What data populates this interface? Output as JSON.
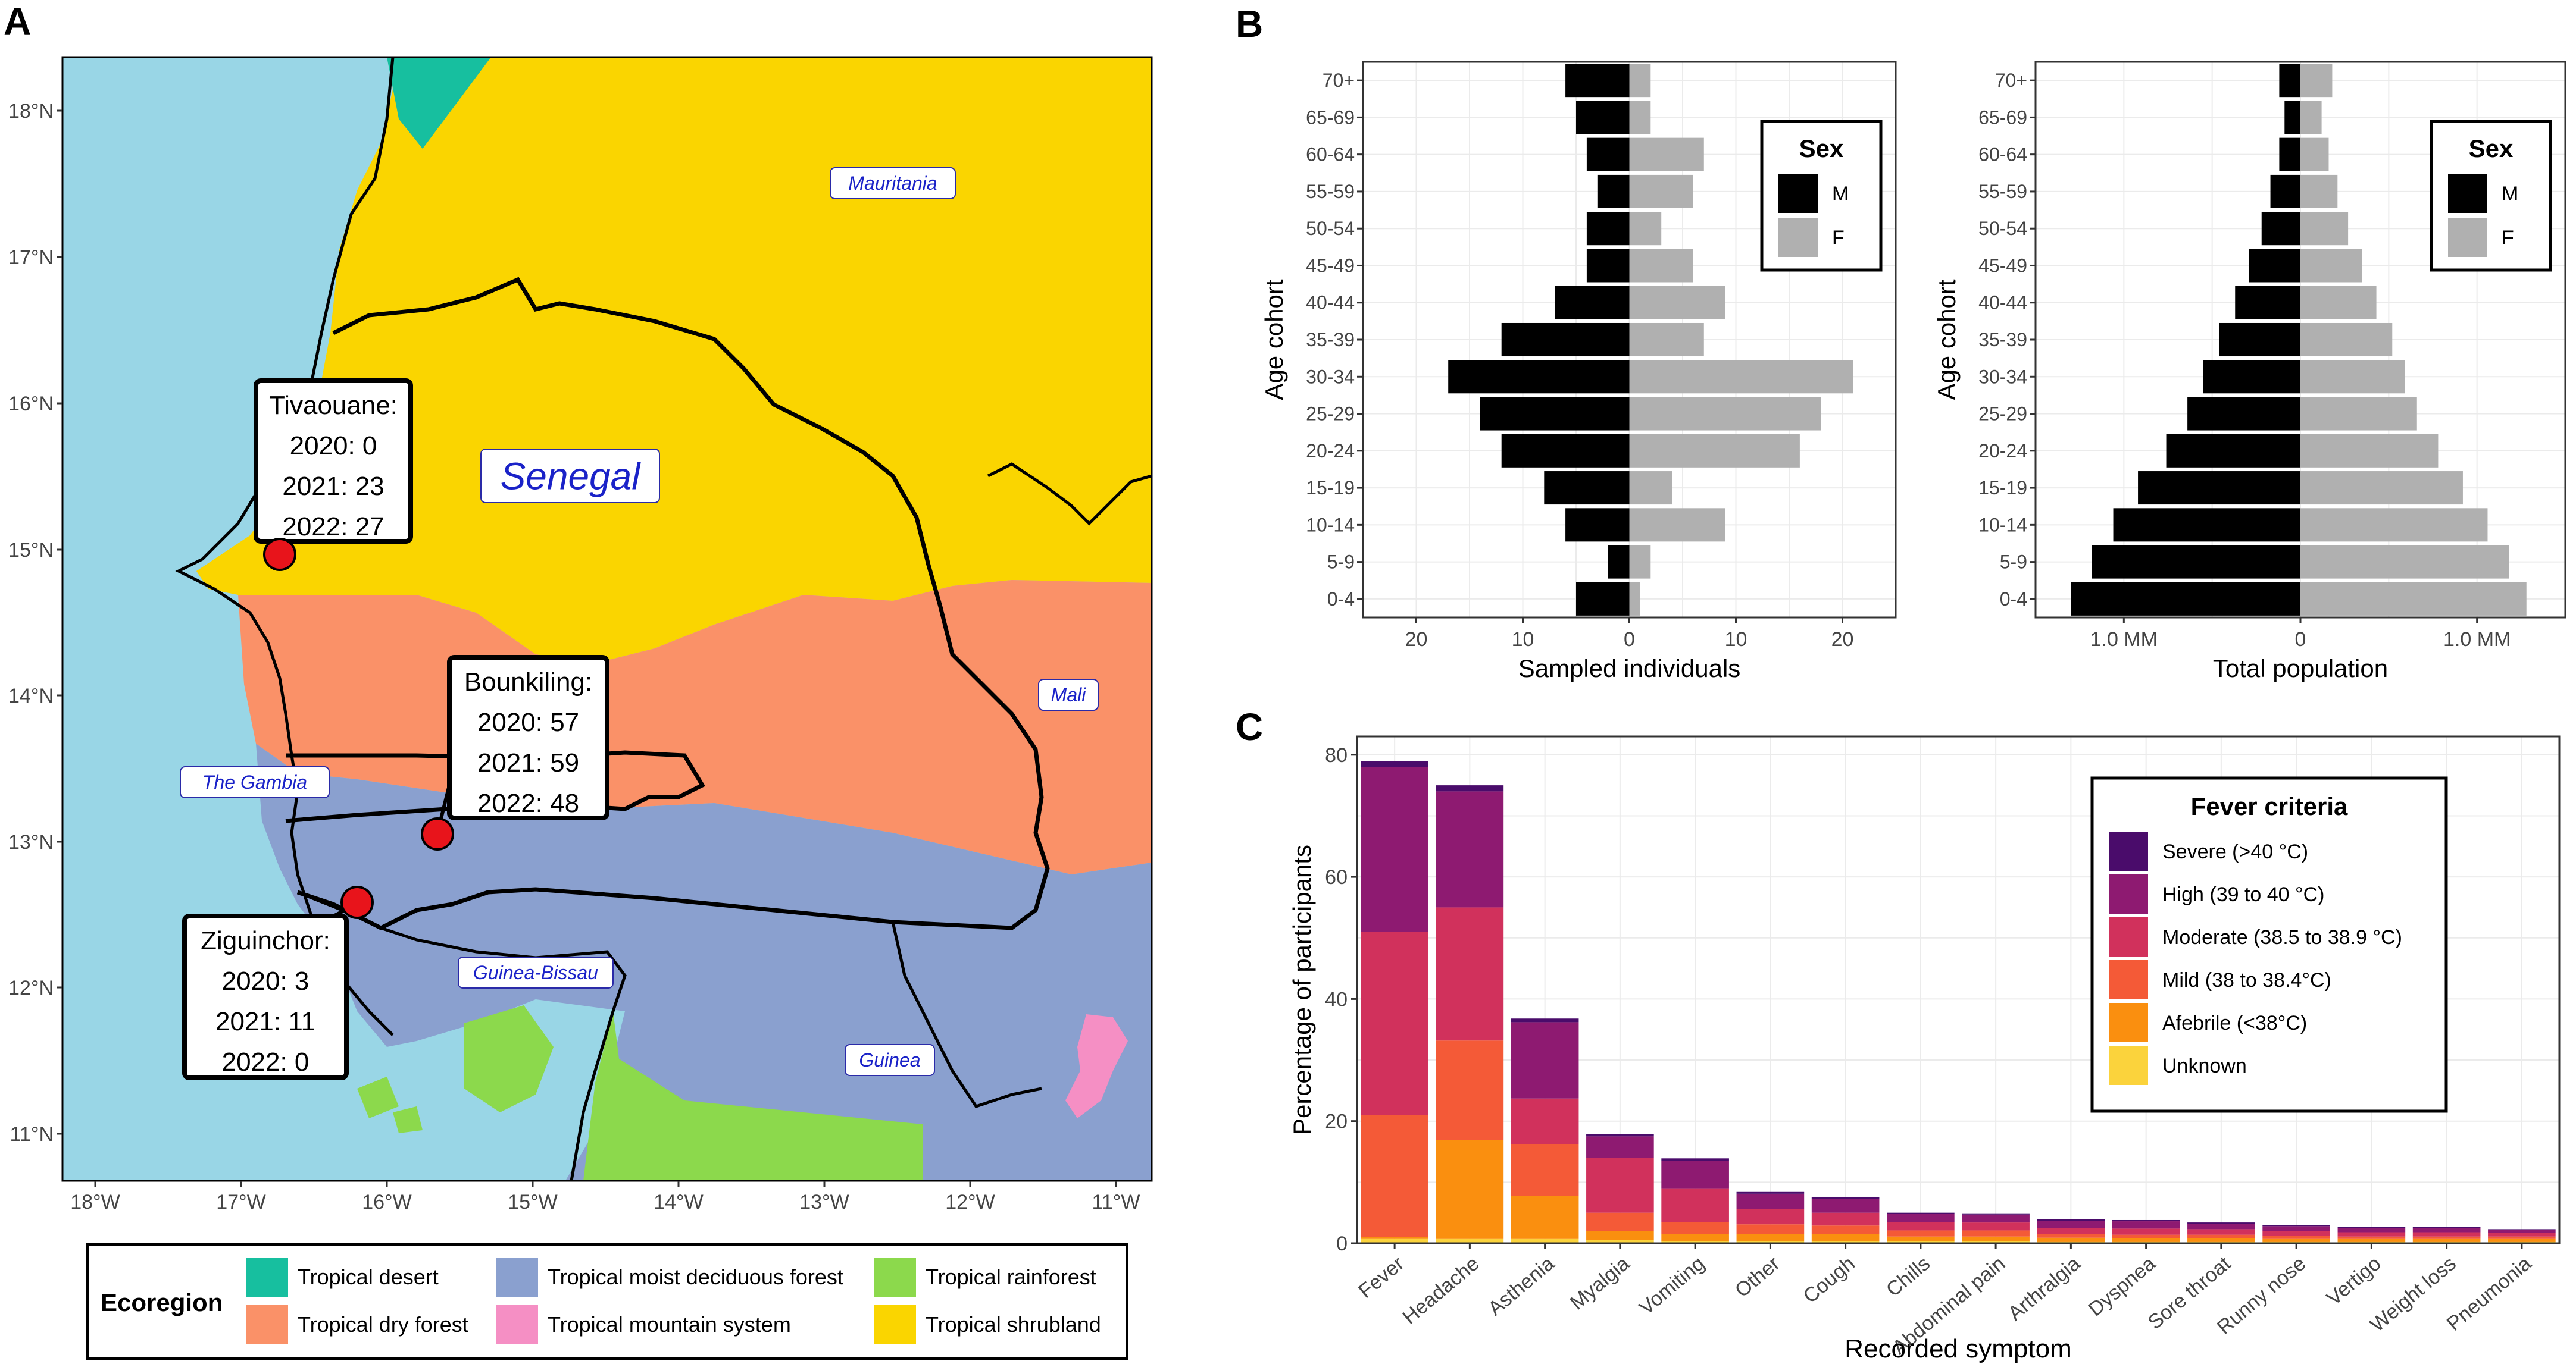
{
  "panels": {
    "a": "A",
    "b": "B",
    "c": "C"
  },
  "colors": {
    "sea": "#99d6e6",
    "tropical_desert": "#17bf9f",
    "tropical_dry_forest": "#fa9168",
    "tropical_moist_deciduous_forest": "#8aa0cf",
    "tropical_mountain_system": "#f58fc4",
    "tropical_rainforest": "#8cd94c",
    "tropical_shrubland": "#fad500",
    "male_bar": "#000000",
    "female_bar": "#b0b0b0",
    "severe": "#4a0c6b",
    "high": "#8e1a71",
    "moderate": "#d1315c",
    "mild": "#f45a37",
    "afebrile": "#fa8f0f",
    "unknown": "#fbd33c"
  },
  "map": {
    "lat_ticks": [
      "18°N",
      "17°N",
      "16°N",
      "15°N",
      "14°N",
      "13°N",
      "12°N",
      "11°N"
    ],
    "lon_ticks": [
      "18°W",
      "17°W",
      "16°W",
      "15°W",
      "14°W",
      "13°W",
      "12°W",
      "11°W"
    ],
    "country_labels": {
      "senegal": "Senegal",
      "mauritania": "Mauritania",
      "mali": "Mali",
      "gambia": "The Gambia",
      "guinea_bissau": "Guinea-Bissau",
      "guinea": "Guinea"
    },
    "sites": [
      {
        "name": "Tivaouane:",
        "lines": [
          "2020: 0",
          "2021: 23",
          "2022: 27"
        ]
      },
      {
        "name": "Bounkiling:",
        "lines": [
          "2020: 57",
          "2021: 59",
          "2022: 48"
        ]
      },
      {
        "name": "Ziguinchor:",
        "lines": [
          "2020: 3",
          "2021: 11",
          "2022: 0"
        ]
      }
    ],
    "legend": {
      "title": "Ecoregion",
      "items": [
        {
          "label": "Tropical desert",
          "color_key": "tropical_desert"
        },
        {
          "label": "Tropical dry forest",
          "color_key": "tropical_dry_forest"
        },
        {
          "label": "Tropical moist deciduous forest",
          "color_key": "tropical_moist_deciduous_forest"
        },
        {
          "label": "Tropical mountain system",
          "color_key": "tropical_mountain_system"
        },
        {
          "label": "Tropical rainforest",
          "color_key": "tropical_rainforest"
        },
        {
          "label": "Tropical shrubland",
          "color_key": "tropical_shrubland"
        }
      ]
    }
  },
  "chart_data": [
    {
      "id": "pyramid_sampled",
      "type": "bar",
      "orientation": "horizontal-diverging",
      "categories": [
        "0-4",
        "5-9",
        "10-14",
        "15-19",
        "20-24",
        "25-29",
        "30-34",
        "35-39",
        "40-44",
        "45-49",
        "50-54",
        "55-59",
        "60-64",
        "65-69",
        "70+"
      ],
      "series": [
        {
          "name": "M",
          "values": [
            5,
            2,
            6,
            8,
            12,
            14,
            17,
            12,
            7,
            4,
            4,
            3,
            4,
            5,
            6
          ]
        },
        {
          "name": "F",
          "values": [
            1,
            2,
            9,
            4,
            16,
            18,
            21,
            7,
            9,
            6,
            3,
            6,
            7,
            2,
            2
          ]
        }
      ],
      "xlabel": "Sampled individuals",
      "ylabel": "Age cohort",
      "xlim": [
        -25,
        25
      ],
      "x_ticks": [
        -20,
        -10,
        0,
        10,
        20
      ],
      "x_tick_labels": [
        "20",
        "10",
        "0",
        "10",
        "20"
      ],
      "legend_title": "Sex",
      "legend_position": "top-right",
      "grid": true
    },
    {
      "id": "pyramid_population",
      "type": "bar",
      "orientation": "horizontal-diverging",
      "categories": [
        "0-4",
        "5-9",
        "10-14",
        "15-19",
        "20-24",
        "25-29",
        "30-34",
        "35-39",
        "40-44",
        "45-49",
        "50-54",
        "55-59",
        "60-64",
        "65-69",
        "70+"
      ],
      "series": [
        {
          "name": "M",
          "values": [
            1.3,
            1.18,
            1.06,
            0.92,
            0.76,
            0.64,
            0.55,
            0.46,
            0.37,
            0.29,
            0.22,
            0.17,
            0.12,
            0.09,
            0.12
          ]
        },
        {
          "name": "F",
          "values": [
            1.28,
            1.18,
            1.06,
            0.92,
            0.78,
            0.66,
            0.59,
            0.52,
            0.43,
            0.35,
            0.27,
            0.21,
            0.16,
            0.12,
            0.18
          ]
        }
      ],
      "value_unit": "million",
      "xlabel": "Total population",
      "ylabel": "Age cohort",
      "xlim": [
        -1.5,
        1.5
      ],
      "x_ticks": [
        -1,
        0,
        1
      ],
      "x_tick_labels": [
        "1.0 MM",
        "0",
        "1.0 MM"
      ],
      "legend_title": "Sex",
      "legend_position": "top-right",
      "grid": true
    },
    {
      "id": "symptoms",
      "type": "bar",
      "stacked": true,
      "categories": [
        "Fever",
        "Headache",
        "Asthenia",
        "Myalgia",
        "Vomiting",
        "Other",
        "Cough",
        "Chills",
        "Abdominal pain",
        "Arthralgia",
        "Dyspnea",
        "Sore throat",
        "Runny nose",
        "Vertigo",
        "Weight loss",
        "Pneumonia"
      ],
      "series": [
        {
          "name": "Unknown",
          "color_key": "unknown",
          "values": [
            0.7,
            0.7,
            0.7,
            0.5,
            0.3,
            0.3,
            0.3,
            0.3,
            0.3,
            0.2,
            0.2,
            0.2,
            0.2,
            0.2,
            0.2,
            0.2
          ]
        },
        {
          "name": "Afebrile (<38°C)",
          "color_key": "afebrile",
          "values": [
            0.3,
            16.2,
            7,
            1.5,
            1.2,
            1.2,
            1.2,
            0.8,
            0.8,
            0.7,
            0.6,
            0.6,
            0.5,
            0.5,
            0.5,
            0.5
          ]
        },
        {
          "name": "Mild (38 to 38.4°C)",
          "color_key": "mild",
          "values": [
            20,
            16.3,
            8.5,
            3,
            2,
            1.6,
            1.4,
            1,
            1,
            0.6,
            0.6,
            0.6,
            0.5,
            0.4,
            0.4,
            0.4
          ]
        },
        {
          "name": "Moderate (38.5 to 38.9 °C)",
          "color_key": "moderate",
          "values": [
            30,
            21.8,
            7.5,
            9,
            5.5,
            2.5,
            2.1,
            1.4,
            1.3,
            1,
            1,
            0.9,
            0.8,
            0.7,
            0.7,
            0.6
          ]
        },
        {
          "name": "High (39 to 40 °C)",
          "color_key": "high",
          "values": [
            27,
            19,
            12.5,
            3.5,
            4.5,
            2.5,
            2.3,
            1.3,
            1.3,
            1.2,
            1.2,
            0.9,
            0.8,
            0.7,
            0.7,
            0.5
          ]
        },
        {
          "name": "Severe (>40 °C)",
          "color_key": "severe",
          "values": [
            1,
            1,
            0.6,
            0.4,
            0.4,
            0.3,
            0.3,
            0.2,
            0.2,
            0.2,
            0.2,
            0.2,
            0.2,
            0.2,
            0.2,
            0.1
          ]
        }
      ],
      "title": "",
      "xlabel": "Recorded symptom",
      "ylabel": "Percentage of participants",
      "ylim": [
        0,
        83
      ],
      "y_ticks": [
        0,
        20,
        40,
        60,
        80
      ],
      "legend_title": "Fever criteria",
      "legend_order": [
        "Severe (>40 °C)",
        "High (39 to 40 °C)",
        "Moderate (38.5 to 38.9 °C)",
        "Mild (38 to 38.4°C)",
        "Afebrile (<38°C)",
        "Unknown"
      ],
      "legend_position": "top-right",
      "grid": true
    }
  ]
}
